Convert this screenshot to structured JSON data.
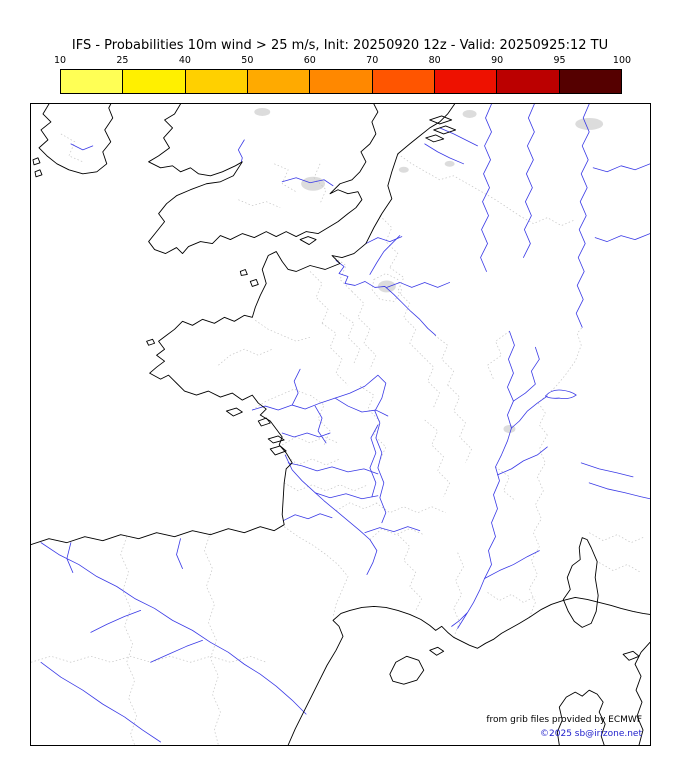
{
  "header": {
    "title": "IFS - Probabilities 10m wind > 25 m/s, Init: 20250920 12z - Valid: 20250925:12 TU"
  },
  "legend": {
    "tick_labels": [
      "10",
      "25",
      "40",
      "50",
      "60",
      "70",
      "80",
      "90",
      "95",
      "100"
    ],
    "segment_colors": [
      "#ffff55",
      "#fff000",
      "#ffd000",
      "#ffaa00",
      "#ff8800",
      "#ff5500",
      "#ee1100",
      "#bb0000",
      "#550000"
    ]
  },
  "map": {
    "credit_line1": "from grib files provided by ECMWF",
    "credit_line2": "©2025 sb@irizone.net",
    "colors": {
      "coastline": "#000000",
      "river": "#3a3ae6",
      "admin_boundary": "#c4c4c4",
      "credit_link": "#2222cc"
    }
  }
}
